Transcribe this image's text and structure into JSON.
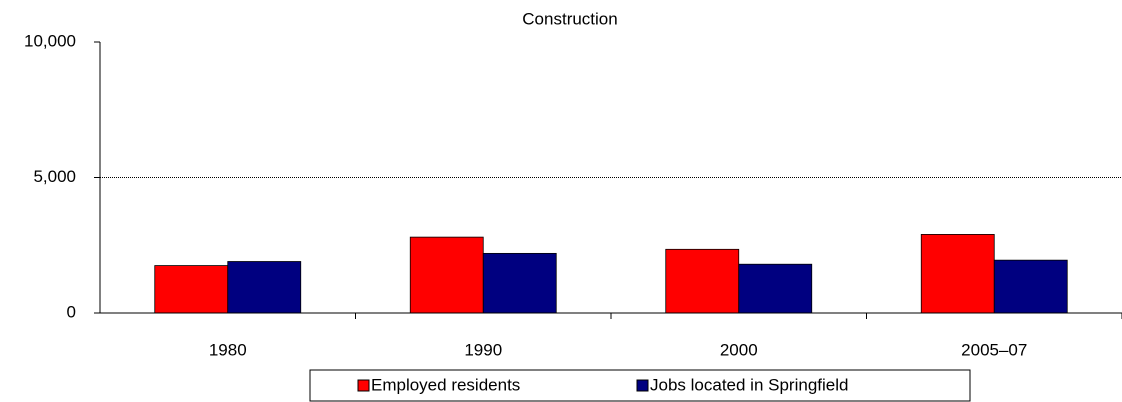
{
  "chart_data": {
    "type": "bar",
    "title": "Construction",
    "categories": [
      "1980",
      "1990",
      "2000",
      "2005–07"
    ],
    "series": [
      {
        "name": "Employed residents",
        "color": "#ff0000",
        "values": [
          1750,
          2800,
          2350,
          2900
        ]
      },
      {
        "name": "Jobs located in Springfield",
        "color": "#000080",
        "values": [
          1900,
          2200,
          1800,
          1950
        ]
      }
    ],
    "ylim": [
      0,
      10000
    ],
    "yticks": [
      0,
      {
        "value": 5000,
        "label": "5,000"
      },
      {
        "value": 10000,
        "label": "10,000"
      }
    ],
    "grid": true,
    "legend": "bottom"
  }
}
